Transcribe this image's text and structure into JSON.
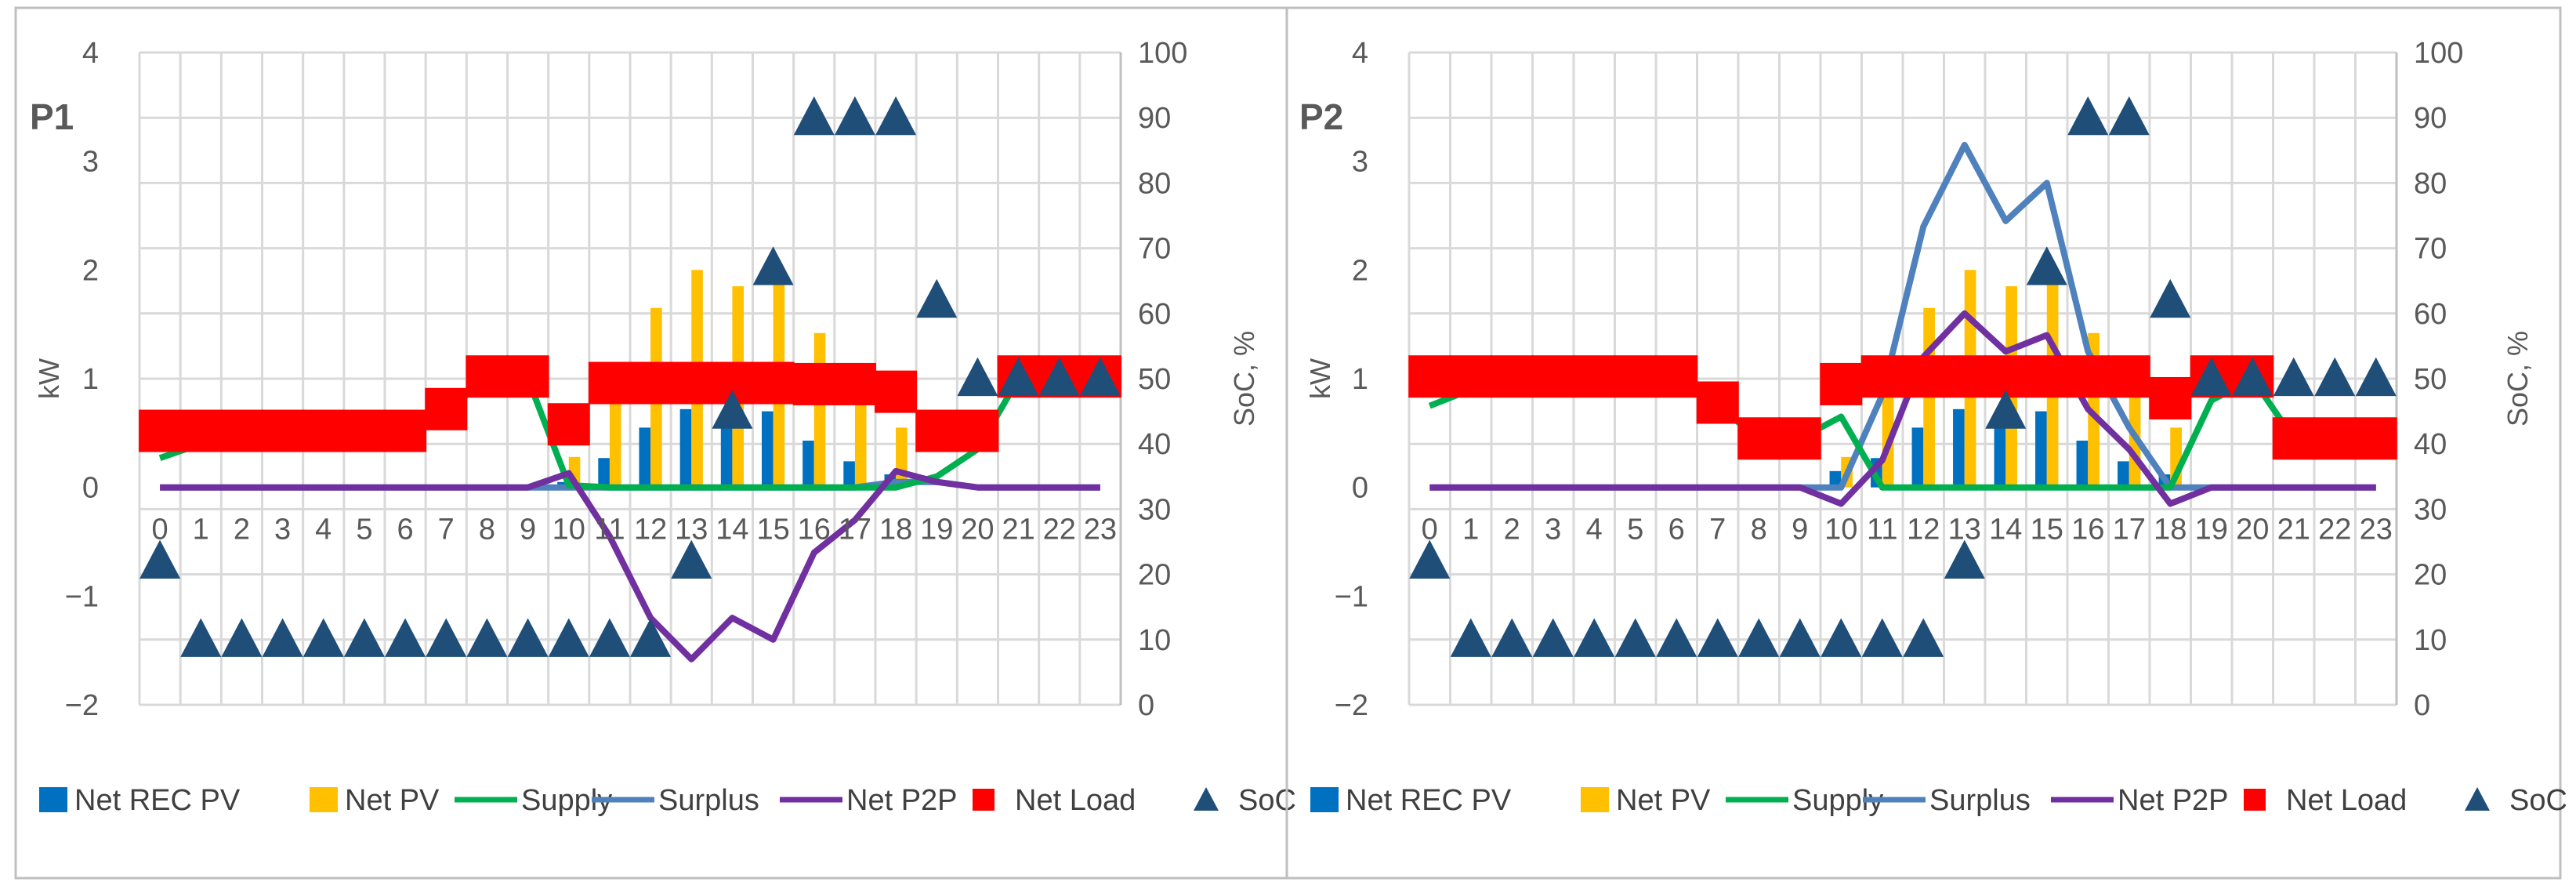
{
  "colors": {
    "net_rec_pv": "#0070C0",
    "net_pv": "#FFC000",
    "supply": "#00B050",
    "surplus": "#4F81BD",
    "net_p2p": "#7030A0",
    "net_load": "#FF0000",
    "soc": "#1F4E79",
    "grid": "#D9D9D9",
    "axis_text": "#595959",
    "border": "#BFBFBF"
  },
  "chart_data": [
    {
      "type": "bar",
      "panel_label": "P1",
      "ylabel": "kW",
      "y2label": "SoC, %",
      "ylim": [
        -2,
        4
      ],
      "y2lim": [
        0,
        100
      ],
      "yticks": [
        "−2",
        "−1",
        "0",
        "1",
        "2",
        "3",
        "4"
      ],
      "y2ticks": [
        "0",
        "10",
        "20",
        "30",
        "40",
        "50",
        "60",
        "70",
        "80",
        "90",
        "100"
      ],
      "categories": [
        "0",
        "1",
        "2",
        "3",
        "4",
        "5",
        "6",
        "7",
        "8",
        "9",
        "10",
        "11",
        "12",
        "13",
        "14",
        "15",
        "16",
        "17",
        "18",
        "19",
        "20",
        "21",
        "22",
        "23"
      ],
      "legend": [
        "Net REC PV",
        "Net PV",
        "Supply",
        "Surplus",
        "Net P2P",
        "Net Load",
        "SoC"
      ],
      "series": [
        {
          "name": "Net REC PV",
          "kind": "bar",
          "axis": "left",
          "values": [
            0,
            0,
            0,
            0,
            0,
            0,
            0,
            0,
            0,
            0,
            0.05,
            0.27,
            0.55,
            0.72,
            0.65,
            0.7,
            0.43,
            0.24,
            0.12,
            0,
            0,
            0,
            0,
            0
          ]
        },
        {
          "name": "Net PV",
          "kind": "bar",
          "axis": "left",
          "values": [
            0,
            0,
            0,
            0,
            0,
            0,
            0,
            0,
            0,
            0,
            0.28,
            1.12,
            1.65,
            2.0,
            1.85,
            1.97,
            1.42,
            0.95,
            0.55,
            0,
            0,
            0,
            0,
            0
          ]
        },
        {
          "name": "Supply",
          "kind": "line",
          "axis": "left",
          "values": [
            0.27,
            0.4,
            0.5,
            0.5,
            0.5,
            0.5,
            0.5,
            0.7,
            1.0,
            1.0,
            0.02,
            0,
            0,
            0,
            0,
            0,
            0,
            0,
            0,
            0.1,
            0.35,
            1.0,
            1.0,
            1.0
          ]
        },
        {
          "name": "Surplus",
          "kind": "line",
          "axis": "left",
          "values": [
            0,
            0,
            0,
            0,
            0,
            0,
            0,
            0,
            0,
            0,
            0,
            0,
            0,
            0,
            0,
            0,
            0,
            0,
            0.05,
            0.05,
            0,
            0,
            0,
            0
          ]
        },
        {
          "name": "Net P2P",
          "kind": "line",
          "axis": "left",
          "values": [
            0,
            0,
            0,
            0,
            0,
            0,
            0,
            0,
            0,
            0,
            0.13,
            -0.45,
            -1.2,
            -1.58,
            -1.2,
            -1.4,
            -0.6,
            -0.3,
            0.15,
            0.05,
            0,
            0,
            0,
            0
          ]
        },
        {
          "name": "Net Load",
          "kind": "marker",
          "axis": "left",
          "values": [
            0.52,
            0.52,
            0.52,
            0.52,
            0.52,
            0.52,
            0.52,
            0.72,
            1.02,
            1.02,
            0.58,
            0.96,
            0.96,
            0.96,
            0.96,
            0.96,
            0.95,
            0.95,
            0.88,
            0.52,
            0.52,
            1.02,
            1.02,
            1.02
          ]
        },
        {
          "name": "SoC",
          "kind": "triangle",
          "axis": "right",
          "values": [
            22,
            10,
            10,
            10,
            10,
            10,
            10,
            10,
            10,
            10,
            10,
            10,
            10,
            22,
            45,
            67,
            90,
            90,
            90,
            62,
            50,
            50,
            50,
            50
          ]
        }
      ]
    },
    {
      "type": "bar",
      "panel_label": "P2",
      "ylabel": "kW",
      "y2label": "SoC, %",
      "ylim": [
        -2,
        4
      ],
      "y2lim": [
        0,
        100
      ],
      "yticks": [
        "−2",
        "−1",
        "0",
        "1",
        "2",
        "3",
        "4"
      ],
      "y2ticks": [
        "0",
        "10",
        "20",
        "30",
        "40",
        "50",
        "60",
        "70",
        "80",
        "90",
        "100"
      ],
      "categories": [
        "0",
        "1",
        "2",
        "3",
        "4",
        "5",
        "6",
        "7",
        "8",
        "9",
        "10",
        "11",
        "12",
        "13",
        "14",
        "15",
        "16",
        "17",
        "18",
        "19",
        "20",
        "21",
        "22",
        "23"
      ],
      "legend": [
        "Net REC PV",
        "Net PV",
        "Supply",
        "Surplus",
        "Net P2P",
        "Net Load",
        "SoC"
      ],
      "series": [
        {
          "name": "Net REC PV",
          "kind": "bar",
          "axis": "left",
          "values": [
            0,
            0,
            0,
            0,
            0,
            0,
            0,
            0,
            0,
            0,
            0.15,
            0.27,
            0.55,
            0.72,
            0.65,
            0.7,
            0.43,
            0.24,
            0.12,
            0,
            0,
            0,
            0,
            0
          ]
        },
        {
          "name": "Net PV",
          "kind": "bar",
          "axis": "left",
          "values": [
            0,
            0,
            0,
            0,
            0,
            0,
            0,
            0,
            0,
            0,
            0.28,
            1.12,
            1.65,
            2.0,
            1.85,
            1.97,
            1.42,
            0.95,
            0.55,
            0,
            0,
            0,
            0,
            0
          ]
        },
        {
          "name": "Supply",
          "kind": "line",
          "axis": "left",
          "values": [
            0.75,
            0.9,
            1.0,
            1.0,
            1.0,
            1.0,
            1.0,
            0.75,
            0.45,
            0.45,
            0.65,
            0,
            0,
            0,
            0,
            0,
            0,
            0,
            0,
            0.8,
            1.0,
            0.45,
            0.45,
            0.45
          ]
        },
        {
          "name": "Surplus",
          "kind": "line",
          "axis": "left",
          "values": [
            0,
            0,
            0,
            0,
            0,
            0,
            0,
            0,
            0,
            0,
            0,
            0.85,
            2.4,
            3.15,
            2.45,
            2.8,
            1.25,
            0.55,
            0,
            0,
            0,
            0,
            0,
            0
          ]
        },
        {
          "name": "Net P2P",
          "kind": "line",
          "axis": "left",
          "values": [
            0,
            0,
            0,
            0,
            0,
            0,
            0,
            0,
            0,
            0,
            -0.15,
            0.25,
            1.2,
            1.6,
            1.25,
            1.4,
            0.72,
            0.35,
            -0.15,
            0,
            0,
            0,
            0,
            0
          ]
        },
        {
          "name": "Net Load",
          "kind": "marker",
          "axis": "left",
          "values": [
            1.02,
            1.02,
            1.02,
            1.02,
            1.02,
            1.02,
            1.02,
            0.78,
            0.45,
            0.45,
            0.95,
            1.02,
            1.02,
            1.02,
            1.02,
            1.02,
            1.02,
            1.02,
            0.82,
            1.02,
            1.02,
            0.45,
            0.45,
            0.45
          ]
        },
        {
          "name": "SoC",
          "kind": "triangle",
          "axis": "right",
          "values": [
            22,
            10,
            10,
            10,
            10,
            10,
            10,
            10,
            10,
            10,
            10,
            10,
            10,
            22,
            45,
            67,
            90,
            90,
            62,
            50,
            50,
            50,
            50,
            50
          ]
        }
      ]
    }
  ]
}
